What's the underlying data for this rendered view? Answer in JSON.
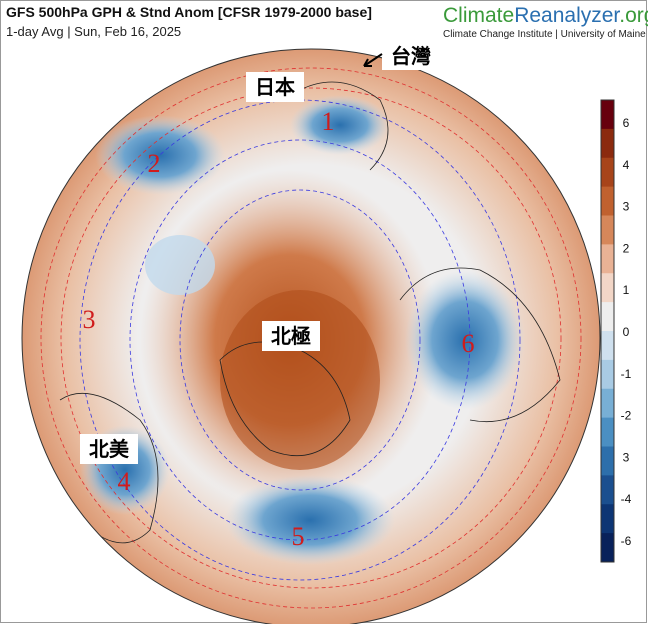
{
  "header": {
    "title": "GFS 500hPa GPH & Stnd Anom [CFSR 1979-2000 base]",
    "subtitle": "1-day Avg | Sun, Feb 16, 2025"
  },
  "logo": {
    "part1": "Climate",
    "part2": "Reanalyzer",
    "part3": ".org",
    "subtitle": "Climate Change Institute | University of Maine"
  },
  "labels": {
    "japan": "日本",
    "taiwan": "台灣",
    "arctic": "北極",
    "north_america": "北美"
  },
  "regions": [
    "1",
    "2",
    "3",
    "4",
    "5",
    "6"
  ],
  "colorbar": {
    "labels": [
      "6",
      "4",
      "3",
      "2",
      "1",
      "0",
      "-1",
      "-2",
      "3",
      "-4",
      "-6"
    ]
  }
}
